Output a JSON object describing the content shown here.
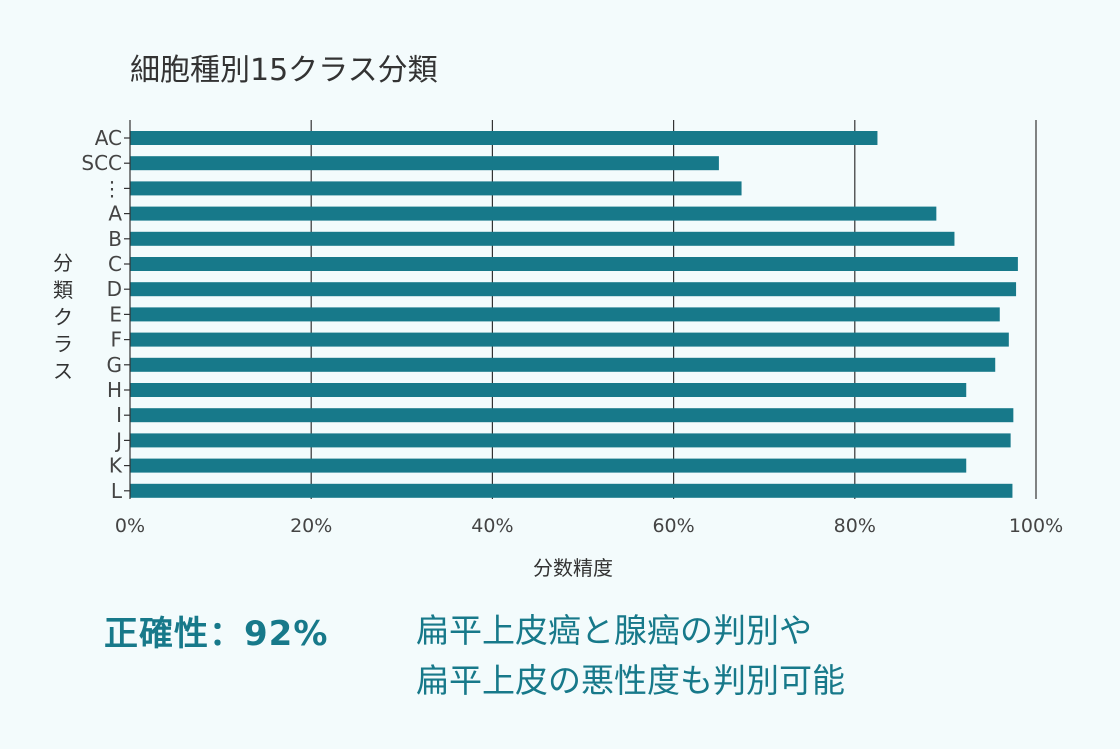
{
  "chart_data": {
    "type": "bar",
    "orientation": "horizontal",
    "title": "細胞種別15クラス分類",
    "xlabel": "分数精度",
    "ylabel": "分類クラス",
    "categories": [
      "AC",
      "SCC",
      "⋮",
      "A",
      "B",
      "C",
      "D",
      "E",
      "F",
      "G",
      "H",
      "I",
      "J",
      "K",
      "L"
    ],
    "values": [
      82.5,
      65,
      67.5,
      89,
      91,
      98,
      97.8,
      96,
      97,
      95.5,
      92.3,
      97.5,
      97.2,
      92.3,
      97.4
    ],
    "xlim": [
      0,
      100
    ],
    "xticks": [
      "0%",
      "20%",
      "40%",
      "60%",
      "80%",
      "100%"
    ],
    "grid": "vertical",
    "bar_color": "#17798a"
  },
  "summary": {
    "accuracy": "正確性：92%",
    "line1": "扁平上皮癌と腺癌の判別や",
    "line2": "扁平上皮の悪性度も判別可能"
  }
}
